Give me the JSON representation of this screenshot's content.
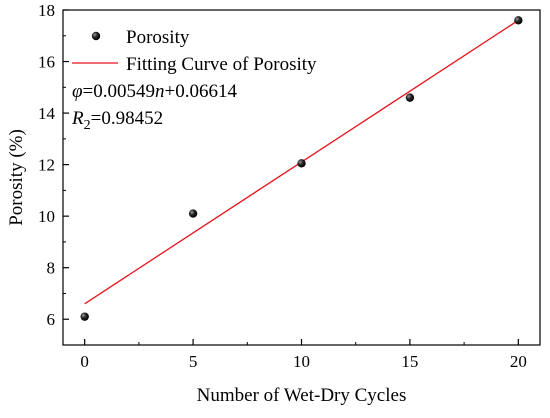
{
  "chart_data": {
    "type": "scatter",
    "title": "",
    "xlabel": "Number of Wet-Dry Cycles",
    "ylabel": "Porosity (%)",
    "xlim": [
      -1,
      21
    ],
    "ylim": [
      5,
      18
    ],
    "xticks": [
      0,
      5,
      10,
      15,
      20
    ],
    "yticks": [
      6,
      8,
      10,
      12,
      14,
      16,
      18
    ],
    "grid": false,
    "legend_position": "top-left",
    "series": [
      {
        "name": "Porosity",
        "kind": "scatter",
        "color": "#000000",
        "x": [
          0,
          5,
          10,
          15,
          20
        ],
        "y": [
          6.1,
          10.1,
          12.05,
          14.6,
          17.6
        ]
      },
      {
        "name": "Fitting Curve of Porosity",
        "kind": "line",
        "color": "#e8141c",
        "x": [
          0,
          20
        ],
        "y": [
          6.6,
          17.6
        ]
      }
    ],
    "annotations": {
      "equation": {
        "var": "φ",
        "mid": "=0.00549",
        "n": "n",
        "tail": "+0.06614"
      },
      "r2": {
        "var": "R",
        "sub": "2",
        "tail": "=0.98452"
      }
    }
  }
}
